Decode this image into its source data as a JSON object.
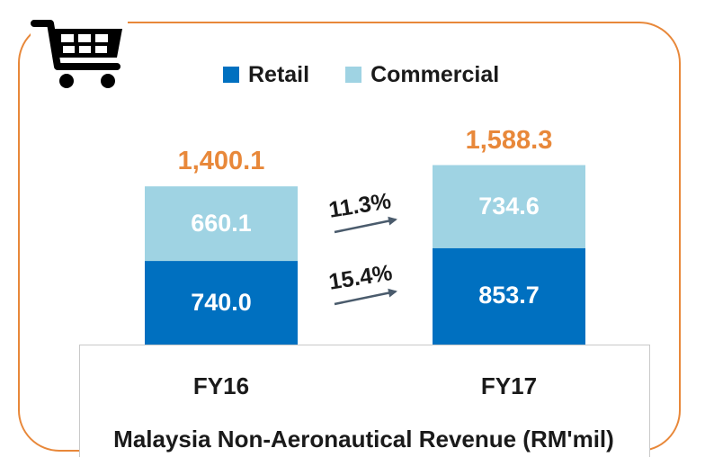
{
  "chart_data": {
    "type": "bar",
    "stacked": true,
    "categories": [
      "FY16",
      "FY17"
    ],
    "series": [
      {
        "name": "Retail",
        "values": [
          740.0,
          853.7
        ],
        "labels": [
          "740.0",
          "853.7"
        ],
        "color": "#0070c0"
      },
      {
        "name": "Commercial",
        "values": [
          660.1,
          734.6
        ],
        "labels": [
          "660.1",
          "734.6"
        ],
        "color": "#9fd3e3"
      }
    ],
    "totals": [
      "1,400.1",
      "1,588.3"
    ],
    "growth": {
      "retail": "15.4%",
      "commercial": "11.3%"
    },
    "title": "Malaysia Non-Aeronautical Revenue (RM'mil)",
    "legend_position": "top",
    "ylim": [
      0,
      1700
    ],
    "grid": false,
    "colors": {
      "frame": "#e8883a",
      "total_text": "#e8883a",
      "arrow": "#4a5b6c"
    }
  },
  "icons": {
    "cart": "shopping-cart-icon"
  }
}
